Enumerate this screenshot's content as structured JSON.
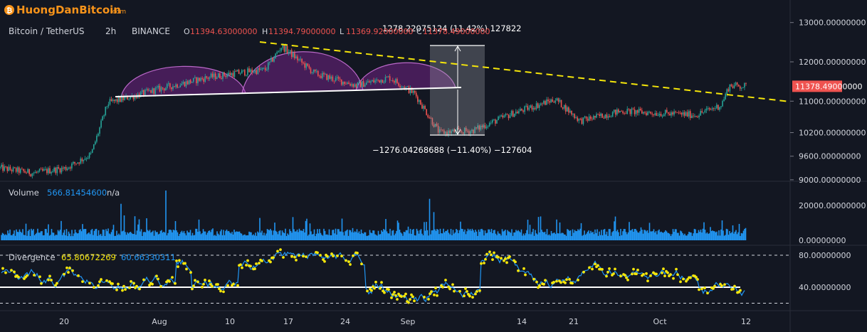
{
  "brand": {
    "logo_text": "HuongDanBitcoin",
    "logo_suffix": ".com",
    "logo_glyph": "₿",
    "color": "#f7931a"
  },
  "legend": {
    "symbol": "Bitcoin / TetherUS",
    "interval": "2h",
    "exchange": "BINANCE",
    "o_label": "O",
    "o_value": "11394.63000000",
    "h_label": "H",
    "h_value": "11394.79000000",
    "l_label": "L",
    "l_value": "11369.92000000",
    "c_label": "C",
    "c_value": "11378.49000000"
  },
  "price_pane": {
    "current_price": "11378.49000000",
    "measure_up": "1278.22075124 (11.42%) 127822",
    "measure_down": "−1276.04268688 (−11.40%) −127604"
  },
  "volume_pane": {
    "label": "Volume",
    "value": "566.81454600",
    "na": "n/a"
  },
  "divergence_pane": {
    "label": "Divergence",
    "value1": "65.80672269",
    "value2": "60.66330311"
  },
  "colors": {
    "background": "#131722",
    "up": "#26a69a",
    "down": "#ef5350",
    "volume": "#2196f3",
    "trendline": "#f5e60a",
    "pattern_fill": "#9c27b0",
    "div_line": "#2196f3",
    "div_dots": "#f5e60a",
    "current_price_bg": "#ef5350"
  },
  "chart_data": [
    {
      "type": "candlestick",
      "title": "Bitcoin / TetherUS 2h BINANCE",
      "x_ticks": [
        "20",
        "Aug",
        "10",
        "17",
        "24",
        "Sep",
        "14",
        "21",
        "Oct",
        "12"
      ],
      "y_ticks": [
        "13000.00000000",
        "12000.00000000",
        "11000.00000000",
        "10200.00000000",
        "9600.00000000",
        "9000.00000000"
      ],
      "ylim": [
        8950,
        13100
      ],
      "approx_close_path": [
        {
          "x": "Jul 14",
          "y": 9300
        },
        {
          "x": "Jul 18",
          "y": 9170
        },
        {
          "x": "Jul 22",
          "y": 9300
        },
        {
          "x": "Jul 25",
          "y": 9650
        },
        {
          "x": "Jul 27",
          "y": 10950
        },
        {
          "x": "Aug 2",
          "y": 11300
        },
        {
          "x": "Aug 8",
          "y": 11600
        },
        {
          "x": "Aug 11",
          "y": 11700
        },
        {
          "x": "Aug 15",
          "y": 11800
        },
        {
          "x": "Aug 17",
          "y": 12400
        },
        {
          "x": "Aug 21",
          "y": 11700
        },
        {
          "x": "Aug 26",
          "y": 11400
        },
        {
          "x": "Aug 30",
          "y": 11600
        },
        {
          "x": "Sep 2",
          "y": 11200
        },
        {
          "x": "Sep 5",
          "y": 10200
        },
        {
          "x": "Sep 9",
          "y": 10250
        },
        {
          "x": "Sep 14",
          "y": 10700
        },
        {
          "x": "Sep 19",
          "y": 11050
        },
        {
          "x": "Sep 22",
          "y": 10500
        },
        {
          "x": "Sep 27",
          "y": 10750
        },
        {
          "x": "Oct 1",
          "y": 10700
        },
        {
          "x": "Oct 6",
          "y": 10650
        },
        {
          "x": "Oct 9",
          "y": 10900
        },
        {
          "x": "Oct 10",
          "y": 11400
        },
        {
          "x": "Oct 12",
          "y": 11378.49
        }
      ],
      "annotations": [
        "head-and-shoulders pattern",
        "neckline",
        "descending trendline",
        "price range measurement"
      ]
    },
    {
      "type": "bar",
      "title": "Volume",
      "y_ticks": [
        "20000.00000000",
        "0.00000000"
      ],
      "ylim": [
        0,
        35000
      ],
      "last_value": 566.814546
    },
    {
      "type": "line",
      "title": "Divergence",
      "y_ticks": [
        "80.00000000",
        "40.00000000"
      ],
      "ylim": [
        15,
        90
      ],
      "series": [
        {
          "values_last": 65.80672269
        },
        {
          "values_last": 60.66330311
        }
      ],
      "reference_levels": [
        80,
        40,
        20
      ]
    }
  ]
}
